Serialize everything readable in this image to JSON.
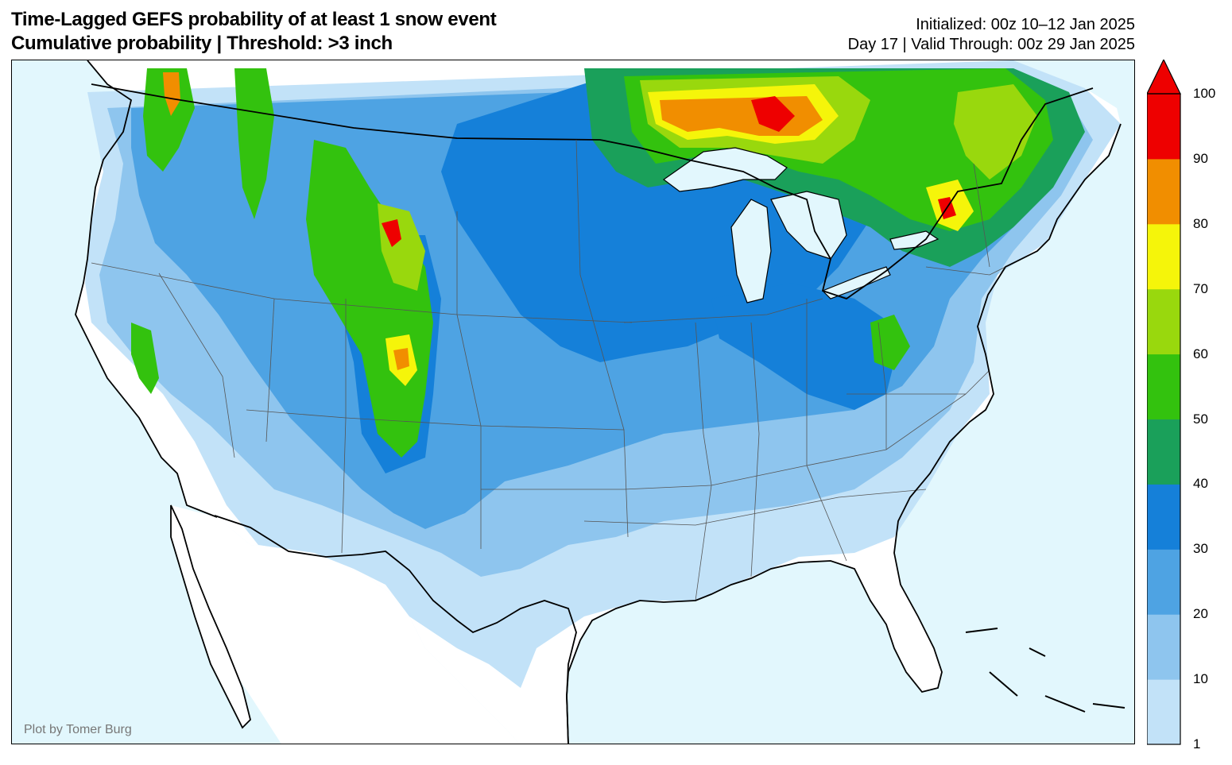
{
  "title": {
    "line1": "Time-Lagged GEFS probability of at least 1 snow event",
    "line2": "Cumulative probability | Threshold: >3 inch"
  },
  "init": {
    "line1": "Initialized: 00z 10–12 Jan 2025",
    "line2": "Day 17 | Valid Through: 00z 29 Jan 2025"
  },
  "credit": "Plot by Tomer Burg",
  "colorbar": {
    "ticks": [
      "1",
      "10",
      "20",
      "30",
      "40",
      "50",
      "60",
      "70",
      "80",
      "90",
      "100"
    ],
    "colors": [
      "#c2e2f8",
      "#8ec5ee",
      "#4ea3e3",
      "#1580d9",
      "#1aa05a",
      "#33c20e",
      "#99d80d",
      "#f5f50a",
      "#f18e00",
      "#ee0000"
    ]
  },
  "map": {
    "ocean_color": "#e2f7fd",
    "land_color": "#ffffff"
  }
}
